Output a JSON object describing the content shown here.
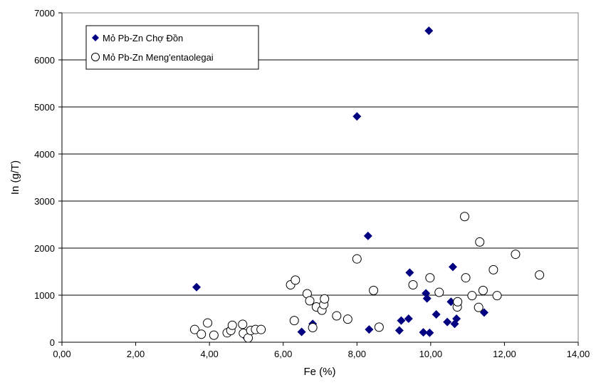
{
  "chart_data": {
    "type": "scatter",
    "xlabel": "Fe (%)",
    "ylabel": "In (g/T)",
    "xlim": [
      0,
      14
    ],
    "ylim": [
      0,
      7000
    ],
    "x_ticks": [
      0,
      2,
      4,
      6,
      8,
      10,
      12,
      14
    ],
    "x_tick_labels": [
      "0,00",
      "2,00",
      "4,00",
      "6,00",
      "8,00",
      "10,00",
      "12,00",
      "14,00"
    ],
    "y_ticks": [
      0,
      1000,
      2000,
      3000,
      4000,
      5000,
      6000,
      7000
    ],
    "y_tick_labels": [
      "0",
      "1000",
      "2000",
      "3000",
      "4000",
      "5000",
      "6000",
      "7000"
    ],
    "grid": "horizontal",
    "legend_position": "top-left",
    "series": [
      {
        "name": "Mỏ Pb-Zn Chợ Đồn",
        "marker": "diamond",
        "color": "#000080",
        "points": [
          [
            3.65,
            1170
          ],
          [
            4.95,
            140
          ],
          [
            6.5,
            220
          ],
          [
            6.8,
            390
          ],
          [
            8.0,
            4800
          ],
          [
            8.3,
            2260
          ],
          [
            8.33,
            270
          ],
          [
            9.15,
            250
          ],
          [
            9.2,
            460
          ],
          [
            9.4,
            500
          ],
          [
            9.43,
            1480
          ],
          [
            9.8,
            210
          ],
          [
            9.87,
            1040
          ],
          [
            9.9,
            930
          ],
          [
            9.95,
            6620
          ],
          [
            9.97,
            200
          ],
          [
            10.15,
            590
          ],
          [
            10.45,
            430
          ],
          [
            10.55,
            860
          ],
          [
            10.6,
            1600
          ],
          [
            10.65,
            390
          ],
          [
            10.7,
            500
          ],
          [
            11.45,
            630
          ]
        ]
      },
      {
        "name": "Mỏ Pb-Zn Meng'entaolegai",
        "marker": "circle",
        "color": "#000000",
        "points": [
          [
            3.6,
            270
          ],
          [
            3.78,
            170
          ],
          [
            3.95,
            410
          ],
          [
            4.12,
            150
          ],
          [
            4.48,
            200
          ],
          [
            4.58,
            250
          ],
          [
            4.62,
            360
          ],
          [
            4.9,
            380
          ],
          [
            4.92,
            190
          ],
          [
            5.05,
            90
          ],
          [
            5.12,
            250
          ],
          [
            5.25,
            270
          ],
          [
            5.4,
            270
          ],
          [
            6.2,
            1220
          ],
          [
            6.3,
            460
          ],
          [
            6.33,
            1320
          ],
          [
            6.65,
            1030
          ],
          [
            6.72,
            880
          ],
          [
            6.8,
            310
          ],
          [
            6.9,
            750
          ],
          [
            7.05,
            680
          ],
          [
            7.1,
            800
          ],
          [
            7.12,
            920
          ],
          [
            7.45,
            560
          ],
          [
            7.75,
            490
          ],
          [
            8.0,
            1770
          ],
          [
            8.45,
            1100
          ],
          [
            8.6,
            320
          ],
          [
            9.52,
            1220
          ],
          [
            9.98,
            1370
          ],
          [
            10.23,
            1060
          ],
          [
            10.72,
            750
          ],
          [
            10.73,
            860
          ],
          [
            10.92,
            2670
          ],
          [
            10.95,
            1370
          ],
          [
            11.12,
            990
          ],
          [
            11.3,
            740
          ],
          [
            11.33,
            2130
          ],
          [
            11.42,
            1100
          ],
          [
            11.7,
            1540
          ],
          [
            11.8,
            990
          ],
          [
            12.3,
            1870
          ],
          [
            12.95,
            1430
          ]
        ]
      }
    ]
  }
}
